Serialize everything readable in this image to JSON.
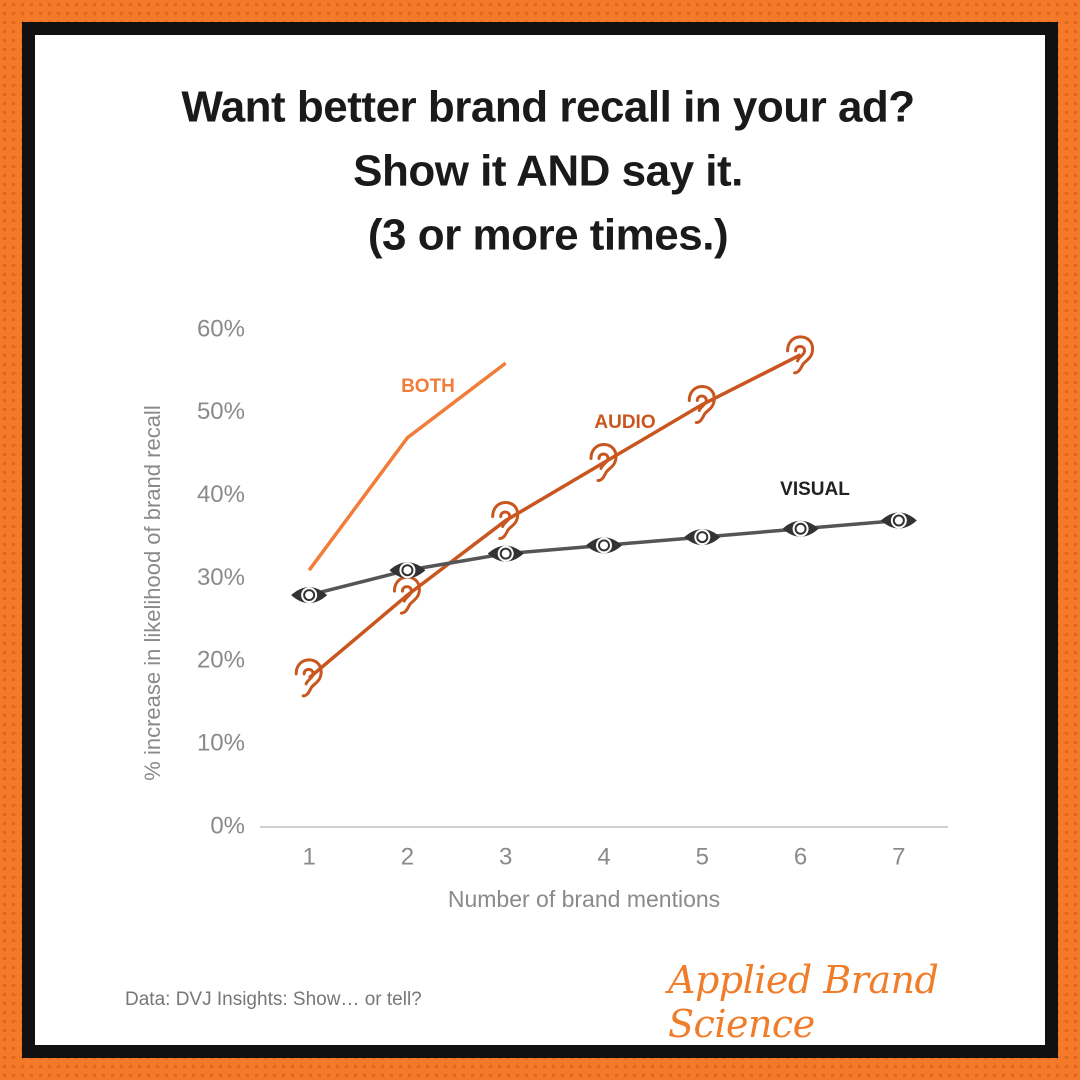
{
  "chart_data": {
    "type": "line",
    "title": [
      "Want better brand recall in your ad?",
      "Show it AND say it.",
      "(3 or more times.)"
    ],
    "x_label": "Number of brand mentions",
    "y_label": "% increase in likelihood of brand recall",
    "source": "Data: DVJ Insights: Show… or tell?",
    "logo": "Applied Brand Science",
    "xlim": [
      0.5,
      7.5
    ],
    "xticks": [
      1,
      2,
      3,
      4,
      5,
      6,
      7
    ],
    "ylim": [
      0,
      60
    ],
    "yticks": [
      {
        "value": 0,
        "label": "0%"
      },
      {
        "value": 10,
        "label": "10%"
      },
      {
        "value": 20,
        "label": "20%"
      },
      {
        "value": 30,
        "label": "30%"
      },
      {
        "value": 40,
        "label": "40%"
      },
      {
        "value": 50,
        "label": "50%"
      },
      {
        "value": 60,
        "label": "60%"
      }
    ],
    "series": [
      {
        "name": "BOTH",
        "color": "#f07d3a",
        "x": [
          1,
          2,
          3
        ],
        "values": [
          31,
          47,
          56
        ]
      },
      {
        "name": "AUDIO",
        "color": "#c8561e",
        "marker": "ear",
        "x": [
          1,
          2,
          3,
          4,
          5,
          6
        ],
        "values": [
          18,
          28,
          37,
          44,
          51,
          57
        ]
      },
      {
        "name": "VISUAL",
        "color": "#555555",
        "marker": "eye",
        "x": [
          1,
          2,
          3,
          4,
          5,
          6,
          7
        ],
        "values": [
          28,
          31,
          33,
          34,
          35,
          36,
          37
        ]
      }
    ]
  }
}
